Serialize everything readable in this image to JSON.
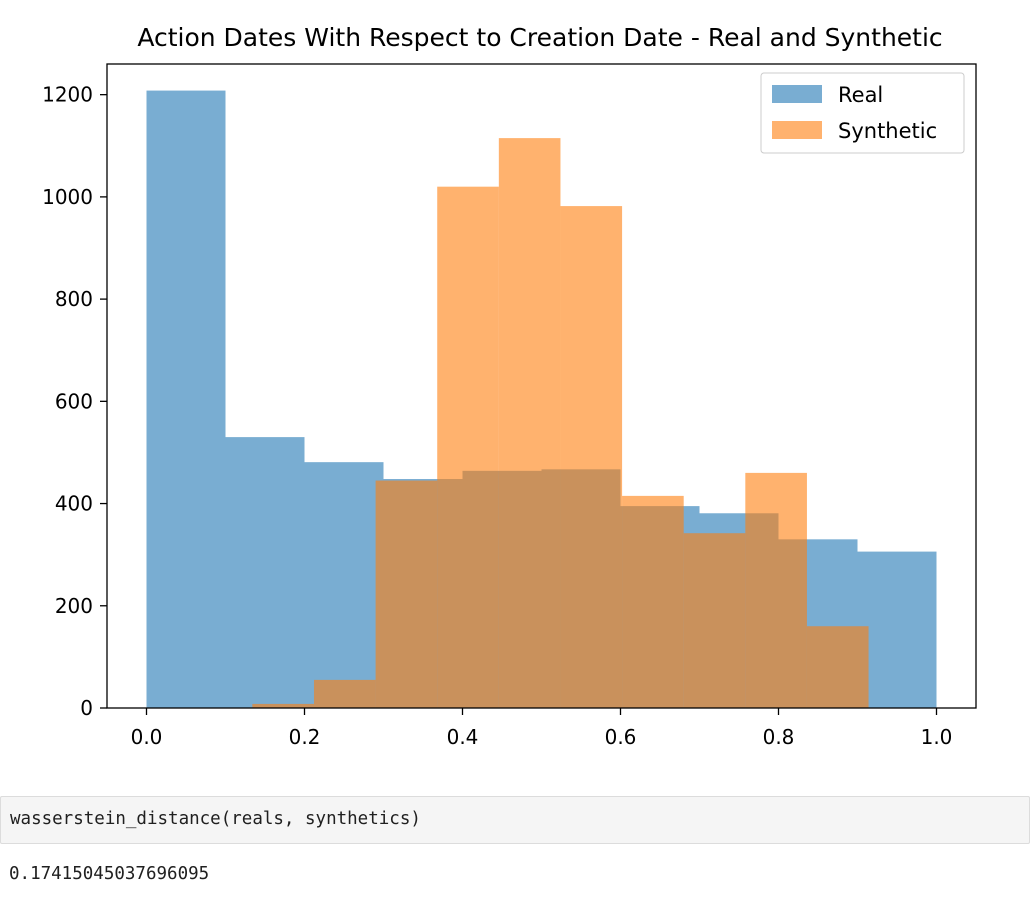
{
  "chart_data": {
    "type": "bar",
    "title": "Action Dates With Respect to Creation Date - Real and Synthetic",
    "xlabel": "",
    "ylabel": "",
    "xlim": [
      -0.05,
      1.05
    ],
    "ylim": [
      0,
      1260
    ],
    "xticks": [
      0.0,
      0.2,
      0.4,
      0.6,
      0.8,
      1.0
    ],
    "xtick_labels": [
      "0.0",
      "0.2",
      "0.4",
      "0.6",
      "0.8",
      "1.0"
    ],
    "yticks": [
      0,
      200,
      400,
      600,
      800,
      1000,
      1200
    ],
    "ytick_labels": [
      "0",
      "200",
      "400",
      "600",
      "800",
      "1000",
      "1200"
    ],
    "legend_position": "top-right",
    "grid": false,
    "series": [
      {
        "name": "Real",
        "color": "#1f77b4",
        "bin_edges": [
          0.0,
          0.1,
          0.2,
          0.3,
          0.4,
          0.5,
          0.6,
          0.7,
          0.8,
          0.9,
          1.0
        ],
        "counts": [
          1208,
          530,
          481,
          448,
          464,
          467,
          395,
          381,
          330,
          306
        ]
      },
      {
        "name": "Synthetic",
        "color": "#ff7f0e",
        "bin_edges": [
          0.134,
          0.212,
          0.29,
          0.368,
          0.446,
          0.524,
          0.602,
          0.68,
          0.758,
          0.836,
          0.914
        ],
        "counts": [
          8,
          55,
          445,
          1020,
          1115,
          982,
          415,
          342,
          460,
          160
        ]
      }
    ]
  },
  "code_cell": {
    "source": "wasserstein_distance(reals, synthetics)"
  },
  "output": {
    "value": "0.17415045037696095"
  }
}
